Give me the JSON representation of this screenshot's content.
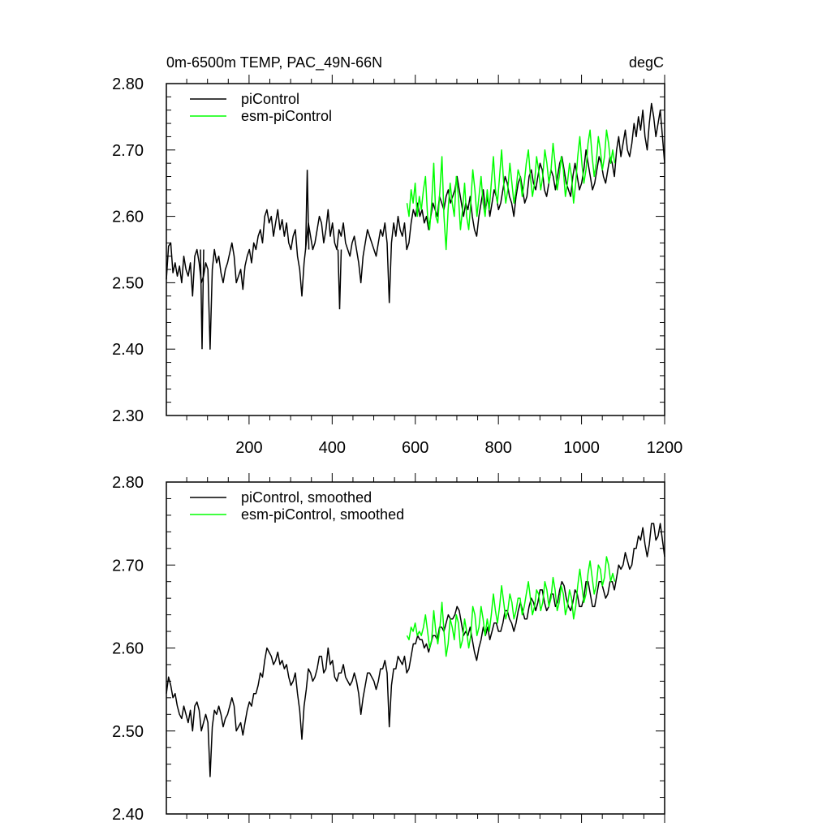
{
  "chart_data": [
    {
      "type": "line",
      "title": "0m-6500m TEMP, PAC_49N-66N",
      "units": "degC",
      "xlabel": "",
      "ylabel": "",
      "xlim": [
        1,
        1200
      ],
      "ylim": [
        2.3,
        2.8
      ],
      "x_ticks": [
        "200",
        "400",
        "600",
        "800",
        "1000",
        "1200"
      ],
      "y_ticks": [
        "2.30",
        "2.40",
        "2.50",
        "2.60",
        "2.70",
        "2.80"
      ],
      "legend_position": "top-left",
      "series": [
        {
          "name": "piControl",
          "color": "#000000",
          "x_start": 1,
          "x_end": 1200,
          "values": [
            2.505,
            2.555,
            2.56,
            2.515,
            2.53,
            2.51,
            2.525,
            2.5,
            2.54,
            2.52,
            2.51,
            2.53,
            2.48,
            2.54,
            2.55,
            2.53,
            2.5,
            2.51,
            2.53,
            2.52,
            2.4,
            2.52,
            2.55,
            2.53,
            2.54,
            2.515,
            2.5,
            2.52,
            2.53,
            2.545,
            2.56,
            2.54,
            2.5,
            2.51,
            2.52,
            2.49,
            2.525,
            2.54,
            2.55,
            2.53,
            2.56,
            2.55,
            2.57,
            2.58,
            2.56,
            2.6,
            2.61,
            2.59,
            2.6,
            2.57,
            2.59,
            2.61,
            2.58,
            2.595,
            2.57,
            2.59,
            2.56,
            2.55,
            2.57,
            2.58,
            2.54,
            2.52,
            2.48,
            2.53,
            2.56,
            2.59,
            2.57,
            2.55,
            2.56,
            2.58,
            2.6,
            2.59,
            2.56,
            2.58,
            2.61,
            2.57,
            2.59,
            2.56,
            2.55,
            2.58,
            2.57,
            2.59,
            2.56,
            2.55,
            2.54,
            2.56,
            2.57,
            2.55,
            2.53,
            2.5,
            2.54,
            2.56,
            2.58,
            2.57,
            2.56,
            2.55,
            2.54,
            2.56,
            2.58,
            2.57,
            2.59,
            2.56,
            2.47,
            2.56,
            2.59,
            2.57,
            2.6,
            2.58,
            2.57,
            2.59,
            2.55,
            2.56,
            2.59,
            2.61,
            2.6,
            2.62,
            2.6,
            2.61,
            2.59,
            2.6,
            2.58,
            2.6,
            2.62,
            2.61,
            2.6,
            2.63,
            2.62,
            2.61,
            2.63,
            2.64,
            2.62,
            2.63,
            2.64,
            2.66,
            2.64,
            2.62,
            2.6,
            2.62,
            2.61,
            2.63,
            2.6,
            2.58,
            2.57,
            2.6,
            2.62,
            2.64,
            2.61,
            2.63,
            2.6,
            2.62,
            2.64,
            2.63,
            2.61,
            2.62,
            2.64,
            2.66,
            2.65,
            2.63,
            2.62,
            2.6,
            2.63,
            2.65,
            2.66,
            2.64,
            2.62,
            2.63,
            2.66,
            2.67,
            2.65,
            2.64,
            2.66,
            2.68,
            2.67,
            2.64,
            2.63,
            2.65,
            2.67,
            2.66,
            2.64,
            2.66,
            2.68,
            2.69,
            2.67,
            2.65,
            2.64,
            2.63,
            2.66,
            2.68,
            2.66,
            2.64,
            2.65,
            2.67,
            2.7,
            2.68,
            2.66,
            2.64,
            2.65,
            2.67,
            2.69,
            2.68,
            2.66,
            2.65,
            2.67,
            2.69,
            2.68,
            2.66,
            2.7,
            2.72,
            2.69,
            2.71,
            2.73,
            2.7,
            2.69,
            2.71,
            2.74,
            2.72,
            2.75,
            2.73,
            2.76,
            2.72,
            2.7,
            2.74,
            2.77,
            2.75,
            2.72,
            2.74,
            2.76,
            2.72,
            2.68
          ],
          "notable_points": [
            [
              87,
              2.4
            ],
            [
              340,
              2.67
            ],
            [
              418,
              2.46
            ]
          ]
        },
        {
          "name": "esm-piControl",
          "color": "#00ff00",
          "x_start": 580,
          "x_end": 1080,
          "values": [
            2.62,
            2.6,
            2.64,
            2.62,
            2.65,
            2.6,
            2.63,
            2.61,
            2.64,
            2.66,
            2.6,
            2.58,
            2.62,
            2.68,
            2.6,
            2.59,
            2.64,
            2.69,
            2.6,
            2.55,
            2.61,
            2.65,
            2.62,
            2.6,
            2.66,
            2.63,
            2.58,
            2.61,
            2.65,
            2.6,
            2.58,
            2.62,
            2.67,
            2.64,
            2.6,
            2.63,
            2.66,
            2.62,
            2.6,
            2.64,
            2.61,
            2.65,
            2.69,
            2.64,
            2.62,
            2.66,
            2.7,
            2.65,
            2.62,
            2.64,
            2.68,
            2.65,
            2.62,
            2.64,
            2.67,
            2.66,
            2.63,
            2.65,
            2.68,
            2.7,
            2.66,
            2.63,
            2.65,
            2.69,
            2.67,
            2.64,
            2.66,
            2.7,
            2.68,
            2.65,
            2.67,
            2.71,
            2.68,
            2.64,
            2.66,
            2.69,
            2.67,
            2.63,
            2.65,
            2.68,
            2.66,
            2.62,
            2.65,
            2.69,
            2.72,
            2.68,
            2.65,
            2.67,
            2.71,
            2.73,
            2.69,
            2.66,
            2.68,
            2.72,
            2.7,
            2.67,
            2.69,
            2.73,
            2.71,
            2.68,
            2.7,
            2.68
          ]
        }
      ]
    },
    {
      "type": "line",
      "title": "",
      "xlabel": "",
      "ylabel": "",
      "xlim": [
        1,
        1200
      ],
      "ylim": [
        2.4,
        2.8
      ],
      "x_ticks": [],
      "y_ticks": [
        "2.40",
        "2.50",
        "2.60",
        "2.70",
        "2.80"
      ],
      "legend_position": "top-left",
      "series": [
        {
          "name": "piControl, smoothed",
          "color": "#000000",
          "x_start": 1,
          "x_end": 1200,
          "values": [
            2.545,
            2.565,
            2.555,
            2.54,
            2.545,
            2.53,
            2.52,
            2.515,
            2.53,
            2.52,
            2.51,
            2.525,
            2.5,
            2.53,
            2.535,
            2.525,
            2.5,
            2.51,
            2.52,
            2.51,
            2.445,
            2.505,
            2.525,
            2.52,
            2.53,
            2.52,
            2.505,
            2.515,
            2.52,
            2.53,
            2.54,
            2.53,
            2.5,
            2.505,
            2.51,
            2.495,
            2.51,
            2.525,
            2.535,
            2.53,
            2.545,
            2.545,
            2.555,
            2.57,
            2.565,
            2.585,
            2.6,
            2.595,
            2.59,
            2.58,
            2.585,
            2.595,
            2.58,
            2.585,
            2.575,
            2.58,
            2.565,
            2.555,
            2.56,
            2.57,
            2.545,
            2.525,
            2.49,
            2.53,
            2.55,
            2.575,
            2.57,
            2.56,
            2.565,
            2.575,
            2.59,
            2.59,
            2.57,
            2.575,
            2.6,
            2.58,
            2.585,
            2.565,
            2.56,
            2.57,
            2.57,
            2.58,
            2.565,
            2.56,
            2.555,
            2.56,
            2.57,
            2.56,
            2.545,
            2.52,
            2.54,
            2.555,
            2.57,
            2.57,
            2.565,
            2.56,
            2.55,
            2.56,
            2.575,
            2.575,
            2.585,
            2.57,
            2.505,
            2.555,
            2.575,
            2.575,
            2.59,
            2.585,
            2.58,
            2.59,
            2.57,
            2.575,
            2.59,
            2.605,
            2.605,
            2.615,
            2.61,
            2.61,
            2.6,
            2.605,
            2.595,
            2.605,
            2.615,
            2.615,
            2.61,
            2.625,
            2.625,
            2.62,
            2.63,
            2.64,
            2.635,
            2.635,
            2.64,
            2.65,
            2.645,
            2.63,
            2.615,
            2.62,
            2.615,
            2.625,
            2.61,
            2.595,
            2.585,
            2.6,
            2.61,
            2.625,
            2.615,
            2.625,
            2.61,
            2.62,
            2.63,
            2.63,
            2.62,
            2.62,
            2.63,
            2.645,
            2.645,
            2.635,
            2.63,
            2.62,
            2.63,
            2.645,
            2.655,
            2.645,
            2.635,
            2.635,
            2.65,
            2.66,
            2.655,
            2.645,
            2.655,
            2.67,
            2.67,
            2.655,
            2.645,
            2.65,
            2.665,
            2.665,
            2.65,
            2.655,
            2.67,
            2.68,
            2.675,
            2.66,
            2.65,
            2.645,
            2.655,
            2.67,
            2.665,
            2.65,
            2.65,
            2.66,
            2.68,
            2.68,
            2.665,
            2.65,
            2.65,
            2.665,
            2.68,
            2.68,
            2.67,
            2.66,
            2.665,
            2.68,
            2.68,
            2.67,
            2.685,
            2.7,
            2.695,
            2.7,
            2.715,
            2.705,
            2.695,
            2.7,
            2.72,
            2.72,
            2.735,
            2.73,
            2.745,
            2.725,
            2.71,
            2.725,
            2.75,
            2.75,
            2.73,
            2.735,
            2.75,
            2.73,
            2.71
          ]
        },
        {
          "name": "esm-piControl, smoothed",
          "color": "#00ff00",
          "x_start": 580,
          "x_end": 1080,
          "values": [
            2.615,
            2.61,
            2.625,
            2.62,
            2.63,
            2.615,
            2.62,
            2.615,
            2.625,
            2.64,
            2.62,
            2.6,
            2.61,
            2.645,
            2.62,
            2.605,
            2.625,
            2.655,
            2.62,
            2.59,
            2.605,
            2.635,
            2.625,
            2.61,
            2.64,
            2.63,
            2.6,
            2.61,
            2.635,
            2.62,
            2.6,
            2.615,
            2.65,
            2.64,
            2.615,
            2.625,
            2.65,
            2.635,
            2.615,
            2.635,
            2.62,
            2.64,
            2.665,
            2.645,
            2.63,
            2.65,
            2.675,
            2.655,
            2.635,
            2.645,
            2.665,
            2.655,
            2.635,
            2.645,
            2.66,
            2.66,
            2.64,
            2.65,
            2.665,
            2.68,
            2.66,
            2.64,
            2.65,
            2.67,
            2.665,
            2.645,
            2.655,
            2.68,
            2.67,
            2.65,
            2.66,
            2.685,
            2.67,
            2.645,
            2.655,
            2.675,
            2.665,
            2.64,
            2.65,
            2.67,
            2.66,
            2.635,
            2.65,
            2.675,
            2.695,
            2.675,
            2.655,
            2.665,
            2.69,
            2.705,
            2.685,
            2.665,
            2.675,
            2.7,
            2.695,
            2.675,
            2.685,
            2.71,
            2.7,
            2.68,
            2.69,
            2.68
          ]
        }
      ]
    }
  ]
}
